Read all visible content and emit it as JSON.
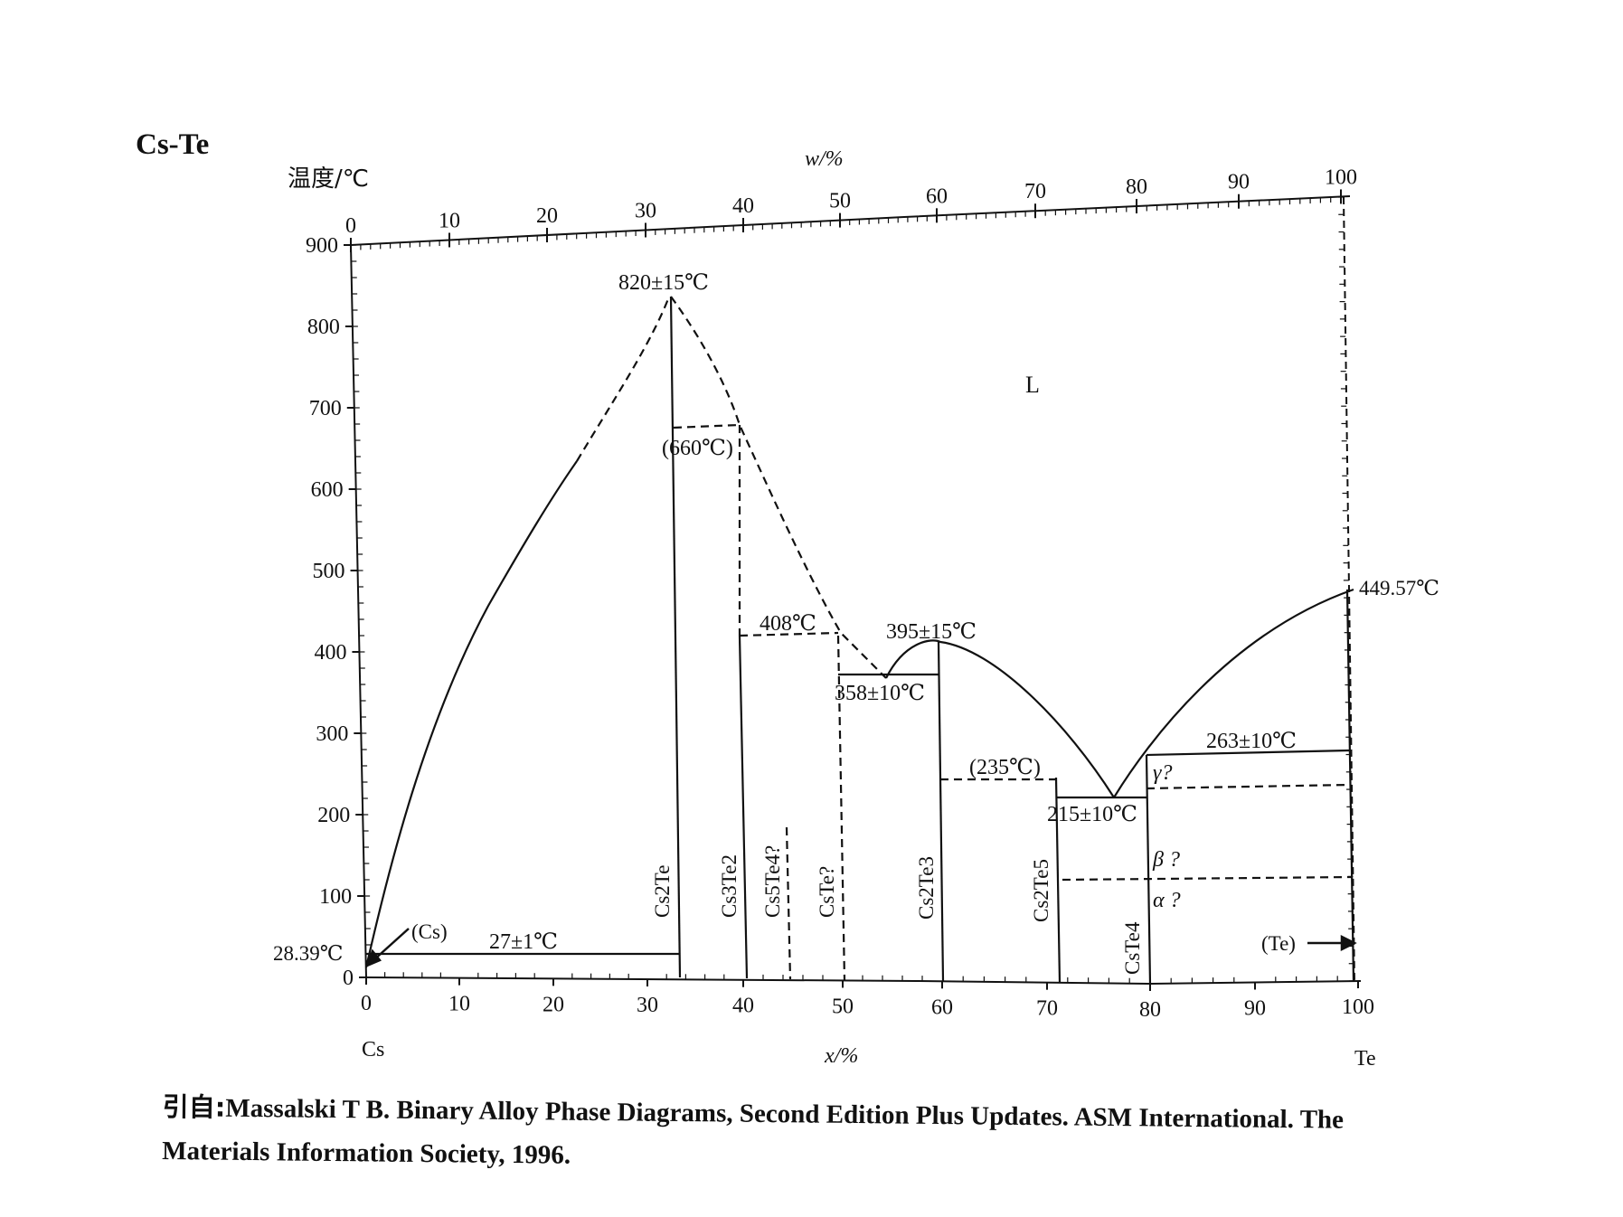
{
  "title": "Cs-Te",
  "y_axis_label": "温度/℃",
  "top_axis_label": "w/%",
  "bottom_axis_label": "x/%",
  "left_element": "Cs",
  "right_element": "Te",
  "y_ticks": [
    "0",
    "100",
    "200",
    "300",
    "400",
    "500",
    "600",
    "700",
    "800",
    "900"
  ],
  "x_ticks": [
    "0",
    "10",
    "20",
    "30",
    "40",
    "50",
    "60",
    "70",
    "80",
    "90",
    "100"
  ],
  "w_ticks": [
    "0",
    "10",
    "20",
    "30",
    "40",
    "50",
    "60",
    "70",
    "80",
    "90",
    "100"
  ],
  "annotations": {
    "cs_melt": "28.39℃",
    "te_melt": "449.57℃",
    "cs2te_max": "820±15℃",
    "peritectic_660": "(660℃)",
    "peritectic_408": "408℃",
    "eutectic_358": "358±10℃",
    "cs2te3_max": "395±15℃",
    "transition_235": "(235℃)",
    "eutectic_215": "215±10℃",
    "transition_263": "263±10℃",
    "eutectic_27": "27±1℃",
    "cs_phase": "(Cs)",
    "te_phase": "(Te)",
    "liquid": "L",
    "gamma": "γ?",
    "beta": "β ?",
    "alpha": "α ?"
  },
  "compounds": [
    "Cs2Te",
    "Cs3Te2",
    "Cs5Te4?",
    "CsTe?",
    "Cs2Te3",
    "Cs2Te5",
    "CsTe4"
  ],
  "caption": {
    "prefix": "引自:",
    "line1": "Massalski T B. Binary Alloy Phase Diagrams, Second Edition Plus Updates. ASM International. The",
    "line2": "Materials Information Society, 1996."
  }
}
